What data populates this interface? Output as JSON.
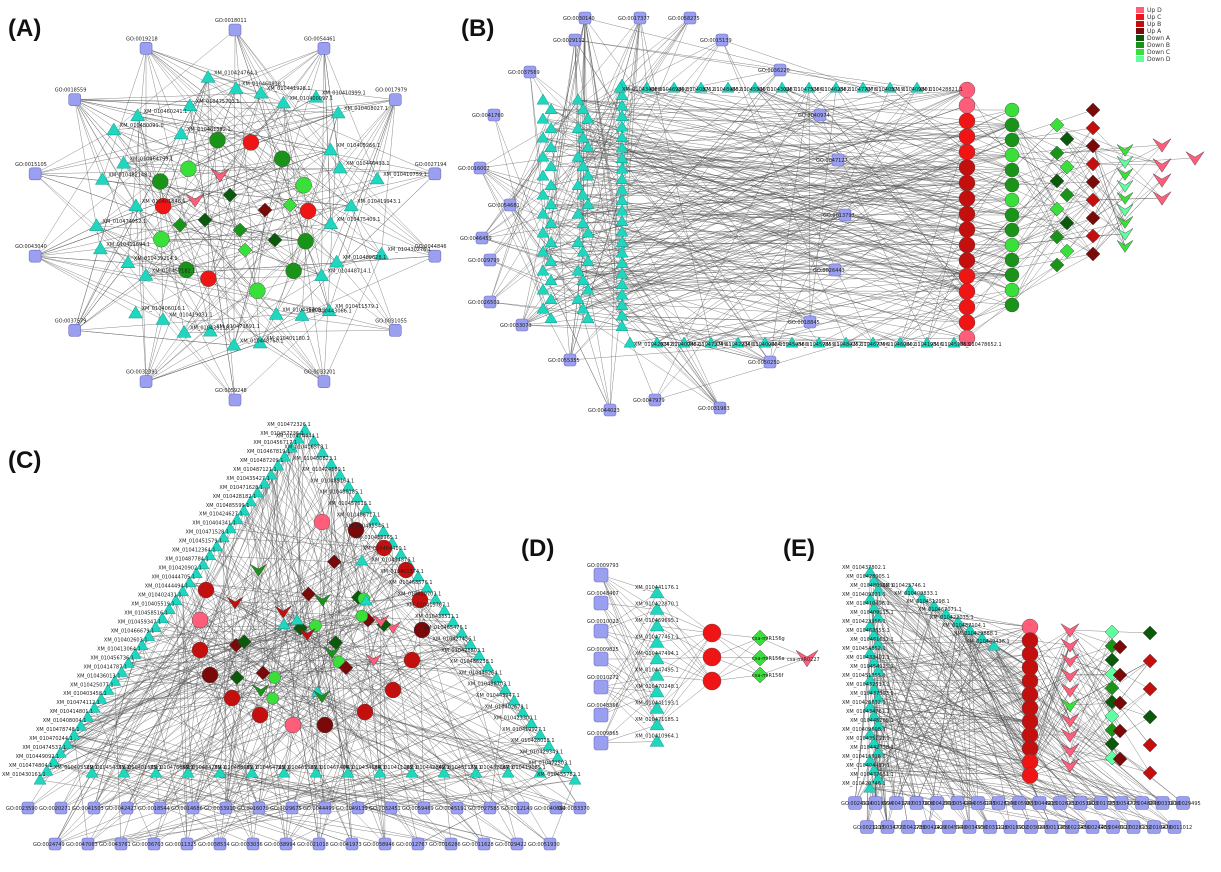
{
  "colors": {
    "go": "#9b9ff0",
    "go_stroke": "#6d6fc4",
    "gene": "#1fd6bf",
    "gene_stroke": "#139c8c",
    "edge": "#555555"
  },
  "legend": [
    {
      "label": "Up D",
      "color": "#ff5d7a"
    },
    {
      "label": "Up C",
      "color": "#f01515"
    },
    {
      "label": "Up B",
      "color": "#c40f0f"
    },
    {
      "label": "Up A",
      "color": "#7a0a0a"
    },
    {
      "label": "Down A",
      "color": "#0b5a0b"
    },
    {
      "label": "Down B",
      "color": "#199419"
    },
    {
      "label": "Down C",
      "color": "#3ae03a"
    },
    {
      "label": "Down D",
      "color": "#5fffa0"
    }
  ],
  "panels": [
    {
      "label": "(A)"
    },
    {
      "label": "(B)"
    },
    {
      "label": "(C)"
    },
    {
      "label": "(D)"
    },
    {
      "label": "(E)"
    }
  ],
  "panelD": {
    "go_terms": [
      "GO:0009793",
      "GO:0048467",
      "GO:0010022",
      "GO:0009825",
      "GO:0010272",
      "GO:0048366",
      "GO:0009865"
    ],
    "genes": [
      "XM_010441176.1",
      "XM_010422870.1",
      "XM_010469695.1",
      "XM_010477451.1",
      "XM_010447494.1",
      "XM_010447495.1",
      "XM_010470248.1",
      "XM_010441193.1",
      "XM_010471185.1",
      "XM_010410964.1"
    ],
    "mirnas": [
      "csa-miR156g",
      "csa-miR156a",
      "csa-miR156f"
    ],
    "lnc": "csa-miR0227"
  },
  "panelB": {
    "go_terms": [
      "GO:0048510",
      "GO:0048509",
      "GO:0010250",
      "GO:0009555",
      "GO:0010021",
      "GO:0010072",
      "GO:0009865",
      "GO:0048469",
      "GO:0009793",
      "GO:0010154",
      "GO:0009908",
      "GO:0048366",
      "GO:0048467",
      "GO:0010022",
      "GO:0009825",
      "GO:0010272"
    ]
  }
}
